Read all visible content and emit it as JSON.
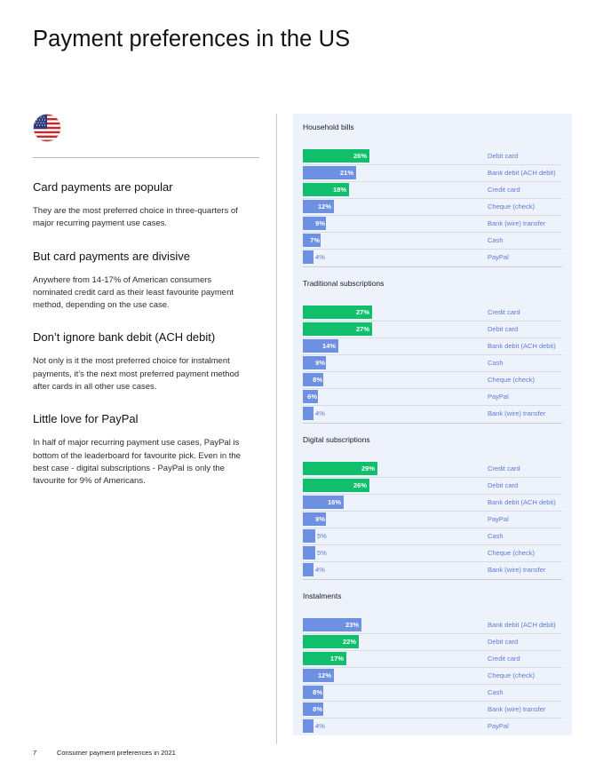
{
  "page": {
    "title": "Payment preferences in the US",
    "flag_icon": "us-flag-icon"
  },
  "sections": [
    {
      "heading": "Card payments are popular",
      "body": "They are the most preferred choice in three-quarters of major recurring payment use cases."
    },
    {
      "heading": "But card payments are divisive",
      "body": "Anywhere from 14-17% of American consumers nominated credit card as their least favourite payment method, depending on the use case."
    },
    {
      "heading": "Don’t ignore bank debit (ACH debit)",
      "body": "Not only is it the most preferred choice for instalment payments, it’s the next most preferred payment method after cards in all other use cases."
    },
    {
      "heading": "Little love for PayPal",
      "body": "In half of major recurring payment use cases, PayPal is bottom of the leaderboard for favourite pick. Even in the best case - digital subscriptions - PayPal is only the favourite for 9% of Americans."
    }
  ],
  "chart_data": [
    {
      "type": "bar",
      "title": "Household bills",
      "categories": [
        "Debit card",
        "Bank debit (ACH debit)",
        "Credit card",
        "Cheque (check)",
        "Bank (wire) transfer",
        "Cash",
        "PayPal"
      ],
      "values": [
        26,
        21,
        18,
        12,
        9,
        7,
        4
      ],
      "labels": [
        "26%",
        "21%",
        "18%",
        "12%",
        "9%",
        "7%",
        "4%"
      ],
      "unit": "%"
    },
    {
      "type": "bar",
      "title": "Traditional subscriptions",
      "categories": [
        "Credit card",
        "Debit card",
        "Bank debit (ACH debit)",
        "Cash",
        "Cheque (check)",
        "PayPal",
        "Bank (wire) transfer"
      ],
      "values": [
        27,
        27,
        14,
        9,
        8,
        6,
        4
      ],
      "labels": [
        "27%",
        "27%",
        "14%",
        "9%",
        "8%",
        "6%",
        "4%"
      ],
      "unit": "%"
    },
    {
      "type": "bar",
      "title": "Digital subscriptions",
      "categories": [
        "Credit card",
        "Debit card",
        "Bank debit (ACH debit)",
        "PayPal",
        "Cash",
        "Cheque (check)",
        "Bank (wire) transfer"
      ],
      "values": [
        29,
        26,
        16,
        9,
        5,
        5,
        4
      ],
      "labels": [
        "29%",
        "26%",
        "16%",
        "9%",
        "5%",
        "5%",
        "4%"
      ],
      "unit": "%"
    },
    {
      "type": "bar",
      "title": "Instalments",
      "categories": [
        "Bank debit (ACH debit)",
        "Debit card",
        "Credit card",
        "Cheque (check)",
        "Cash",
        "Bank (wire) transfer",
        "PayPal"
      ],
      "values": [
        23,
        22,
        17,
        12,
        8,
        8,
        4
      ],
      "labels": [
        "23%",
        "22%",
        "17%",
        "12%",
        "8%",
        "8%",
        "4%"
      ],
      "unit": "%"
    }
  ],
  "colors": {
    "card_bar": "#0fbf6b",
    "other_bar": "#6e90e2"
  },
  "footer": {
    "page_number": "7",
    "text": "Consumer payment preferences in 2021"
  }
}
